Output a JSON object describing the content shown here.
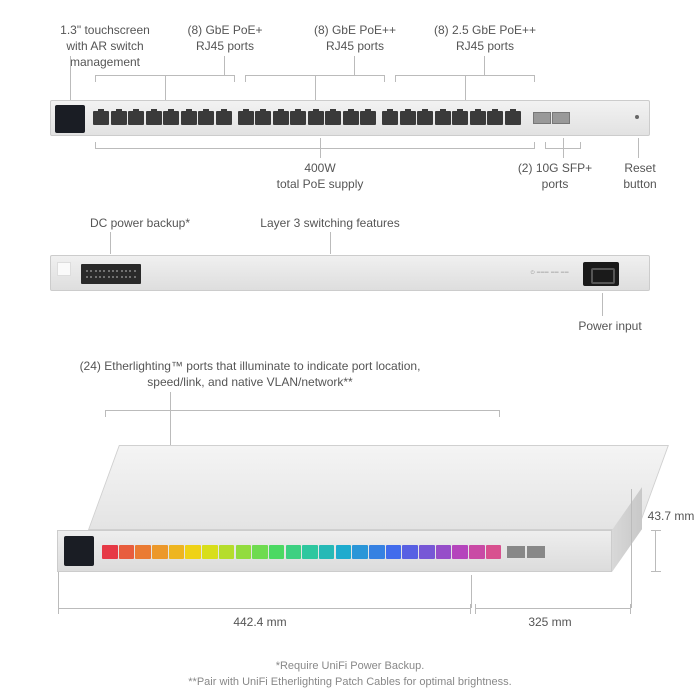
{
  "labels": {
    "touchscreen": "1.3\" touchscreen\nwith AR switch management",
    "ports_gbe_poe_plus": "(8) GbE PoE+\nRJ45 ports",
    "ports_gbe_poe_pp": "(8) GbE PoE++\nRJ45 ports",
    "ports_25gbe_poe_pp": "(8) 2.5 GbE PoE++\nRJ45 ports",
    "poe_supply": "400W\ntotal PoE supply",
    "sfp": "(2) 10G SFP+\nports",
    "reset": "Reset\nbutton",
    "dc_backup": "DC power backup*",
    "layer3": "Layer 3 switching features",
    "power_input": "Power input",
    "etherlighting": "(24) Etherlighting™ ports that illuminate to indicate port location,\nspeed/link, and native VLAN/network**"
  },
  "dimensions": {
    "width": "442.4 mm",
    "depth": "325 mm",
    "height": "43.7 mm"
  },
  "footnotes": {
    "f1": "*Require UniFi Power Backup.",
    "f2": "**Pair with UniFi Etherlighting Patch Cables for optimal brightness."
  },
  "styling": {
    "label_color": "#555555",
    "line_color": "#bbbbbb",
    "label_fontsize": 12,
    "footnote_color": "#888888",
    "footnote_fontsize": 11,
    "chassis_bg_top": "#f2f2f2",
    "chassis_bg_bottom": "#e2e2e2",
    "port_color": "#3a3a3a"
  },
  "front_view": {
    "port_groups": [
      8,
      8,
      8
    ],
    "sfp_ports": 2
  },
  "iso_view": {
    "port_count": 24,
    "port_colors": [
      "#e63946",
      "#e85d3d",
      "#ea7b33",
      "#ec982a",
      "#eeb520",
      "#efd217",
      "#d8de1a",
      "#b5dd2c",
      "#92dc3e",
      "#6fdb50",
      "#4cd963",
      "#3dd081",
      "#2ec79f",
      "#26b9b6",
      "#1eabce",
      "#2a96d8",
      "#3681e2",
      "#426cec",
      "#5860e3",
      "#7757d6",
      "#964ec9",
      "#b545bc",
      "#c94aa5",
      "#d8508f"
    ]
  }
}
